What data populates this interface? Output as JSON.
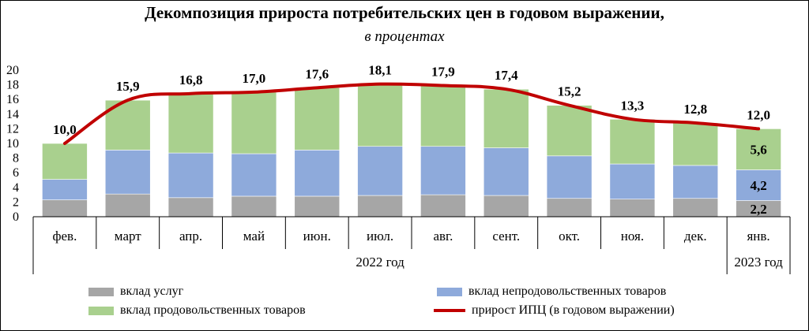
{
  "chart_data": {
    "type": "bar",
    "title": "Декомпозиция прироста потребительских цен в годовом выражении,",
    "subtitle": "в процентах",
    "categories": [
      "фев.",
      "март",
      "апр.",
      "май",
      "июн.",
      "июл.",
      "авг.",
      "сент.",
      "окт.",
      "ноя.",
      "дек.",
      "янв."
    ],
    "year_groups": [
      {
        "label": "2022 год",
        "count": 11
      },
      {
        "label": "2023 год",
        "count": 1
      }
    ],
    "ylim": [
      0,
      20
    ],
    "yticks": [
      0,
      2,
      4,
      6,
      8,
      10,
      12,
      14,
      16,
      18,
      20
    ],
    "grid": false,
    "stacked": true,
    "series": [
      {
        "name": "вклад услуг",
        "color": "#a6a6a6",
        "values": [
          2.3,
          3.1,
          2.6,
          2.8,
          2.8,
          2.9,
          3.0,
          2.9,
          2.5,
          2.4,
          2.5,
          2.2
        ]
      },
      {
        "name": "вклад непродовольственных товаров",
        "color": "#8eaadb",
        "values": [
          2.8,
          6.0,
          6.1,
          5.8,
          6.3,
          6.7,
          6.6,
          6.5,
          5.8,
          4.8,
          4.5,
          4.2
        ]
      },
      {
        "name": "вклад продовольственных товаров",
        "color": "#a9d08e",
        "values": [
          4.9,
          6.8,
          8.1,
          8.4,
          8.5,
          8.5,
          8.3,
          8.0,
          6.9,
          6.1,
          5.8,
          5.6
        ]
      }
    ],
    "line": {
      "name": "прирост ИПЦ (в годовом выражении)",
      "color": "#c00000",
      "values": [
        10.0,
        15.9,
        16.8,
        17.0,
        17.6,
        18.1,
        17.9,
        17.4,
        15.2,
        13.3,
        12.8,
        12.0
      ]
    },
    "line_labels": [
      "10,0",
      "15,9",
      "16,8",
      "17,0",
      "17,6",
      "18,1",
      "17,9",
      "17,4",
      "15,2",
      "13,3",
      "12,8",
      "12,0"
    ],
    "segment_labels_last_bar": [
      "2,2",
      "4,2",
      "5,6"
    ],
    "legend_position": "bottom"
  }
}
